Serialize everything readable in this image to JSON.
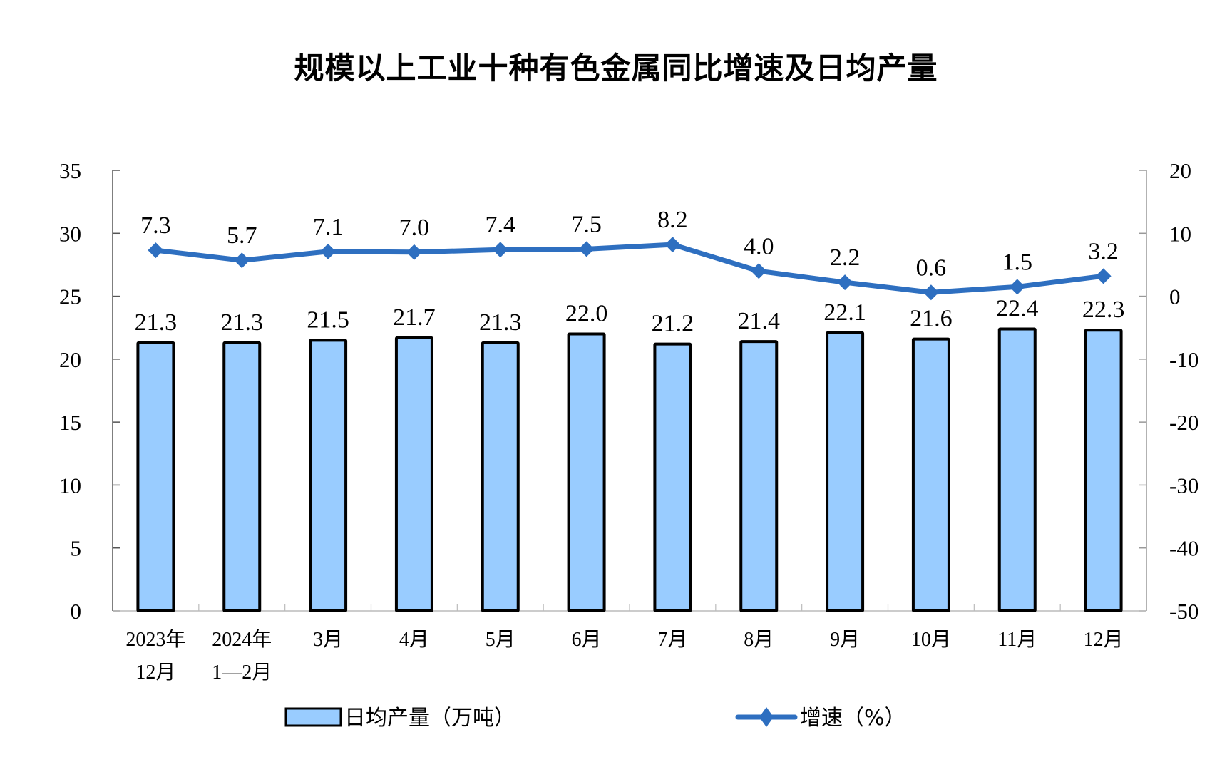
{
  "title": "规模以上工业十种有色金属同比增速及日均产量",
  "colors": {
    "bar_fill": "#99CCFF",
    "bar_stroke": "#000000",
    "line": "#2E6FC0",
    "axis": "#999999"
  },
  "left_axis": {
    "ticks": [
      "0",
      "5",
      "10",
      "15",
      "20",
      "25",
      "30",
      "35"
    ]
  },
  "right_axis": {
    "ticks": [
      "-50",
      "-40",
      "-30",
      "-20",
      "-10",
      "0",
      "10",
      "20"
    ]
  },
  "legend": {
    "bar": "日均产量（万吨）",
    "line": "增速（%）"
  },
  "categories": [
    {
      "line1": "2023年",
      "line2": "12月"
    },
    {
      "line1": "2024年",
      "line2": "1—2月"
    },
    {
      "line1": "3月",
      "line2": ""
    },
    {
      "line1": "4月",
      "line2": ""
    },
    {
      "line1": "5月",
      "line2": ""
    },
    {
      "line1": "6月",
      "line2": ""
    },
    {
      "line1": "7月",
      "line2": ""
    },
    {
      "line1": "8月",
      "line2": ""
    },
    {
      "line1": "9月",
      "line2": ""
    },
    {
      "line1": "10月",
      "line2": ""
    },
    {
      "line1": "11月",
      "line2": ""
    },
    {
      "line1": "12月",
      "line2": ""
    }
  ],
  "chart_data": {
    "type": "bar",
    "title": "规模以上工业十种有色金属同比增速及日均产量",
    "categories": [
      "2023年12月",
      "2024年1—2月",
      "3月",
      "4月",
      "5月",
      "6月",
      "7月",
      "8月",
      "9月",
      "10月",
      "11月",
      "12月"
    ],
    "series": [
      {
        "name": "日均产量（万吨）",
        "type": "bar",
        "axis": "left",
        "values": [
          21.3,
          21.3,
          21.5,
          21.7,
          21.3,
          22.0,
          21.2,
          21.4,
          22.1,
          21.6,
          22.4,
          22.3
        ],
        "labels": [
          "21.3",
          "21.3",
          "21.5",
          "21.7",
          "21.3",
          "22.0",
          "21.2",
          "21.4",
          "22.1",
          "21.6",
          "22.4",
          "22.3"
        ]
      },
      {
        "name": "增速（%）",
        "type": "line",
        "axis": "right",
        "marker": "diamond",
        "values": [
          7.3,
          5.7,
          7.1,
          7.0,
          7.4,
          7.5,
          8.2,
          4.0,
          2.2,
          0.6,
          1.5,
          3.2
        ],
        "labels": [
          "7.3",
          "5.7",
          "7.1",
          "7.0",
          "7.4",
          "7.5",
          "8.2",
          "4.0",
          "2.2",
          "0.6",
          "1.5",
          "3.2"
        ]
      }
    ],
    "xlabel": "",
    "ylabel": "",
    "ylim": [
      0,
      35
    ],
    "y2lim": [
      -50,
      20
    ],
    "yticks": [
      0,
      5,
      10,
      15,
      20,
      25,
      30,
      35
    ],
    "y2ticks": [
      -50,
      -40,
      -30,
      -20,
      -10,
      0,
      10,
      20
    ],
    "grid": false,
    "legend_position": "bottom"
  }
}
